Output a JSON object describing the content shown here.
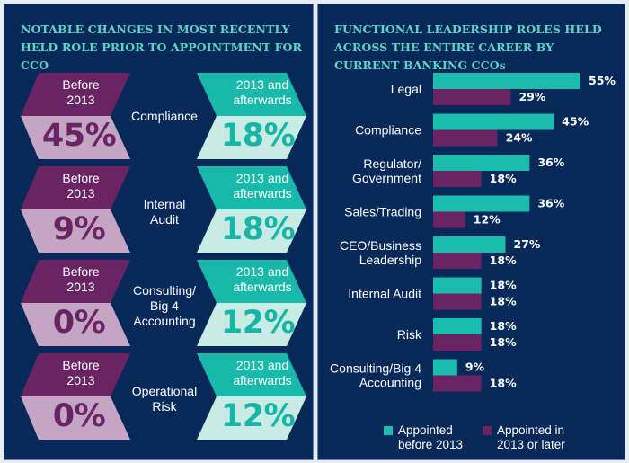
{
  "colors": {
    "background": "#06295a",
    "title": "#5fd4c6",
    "before_dark": "#6a2463",
    "before_light": "#c4a5c4",
    "after_dark": "#18b8aa",
    "after_light": "#c9ebe5",
    "bar_before": "#1bbcae",
    "bar_after": "#6a2463"
  },
  "left_panel": {
    "title": "NOTABLE CHANGES IN MOST RECENTLY HELD ROLE PRIOR TO APPOINTMENT FOR CCO",
    "rows": [
      {
        "role": "Compliance",
        "before_label": "Before 2013",
        "before_value": "45%",
        "after_label": "2013 and afterwards",
        "after_value": "18%"
      },
      {
        "role": "Internal Audit",
        "before_label": "Before 2013",
        "before_value": "9%",
        "after_label": "2013 and afterwards",
        "after_value": "18%"
      },
      {
        "role": "Consulting/ Big 4 Accounting",
        "before_label": "Before 2013",
        "before_value": "0%",
        "after_label": "2013 and afterwards",
        "after_value": "12%"
      },
      {
        "role": "Operational Risk",
        "before_label": "Before 2013",
        "before_value": "0%",
        "after_label": "2013 and afterwards",
        "after_value": "12%"
      }
    ]
  },
  "chart_data": {
    "type": "bar",
    "orientation": "horizontal",
    "title": "FUNCTIONAL LEADERSHIP ROLES HELD ACROSS THE ENTIRE CAREER BY CURRENT BANKING CCOs",
    "categories": [
      "Legal",
      "Compliance",
      "Regulator/ Government",
      "Sales/Trading",
      "CEO/Business Leadership",
      "Internal Audit",
      "Risk",
      "Consulting/Big 4 Accounting"
    ],
    "series": [
      {
        "name": "Appointed before 2013",
        "values": [
          55,
          45,
          36,
          36,
          27,
          18,
          18,
          9
        ]
      },
      {
        "name": "Appointed in 2013 or later",
        "values": [
          29,
          24,
          18,
          12,
          18,
          18,
          18,
          18
        ]
      }
    ],
    "value_suffix": "%",
    "xlim": [
      0,
      60
    ],
    "grid": false,
    "legend": "bottom"
  },
  "legend": [
    {
      "label_line1": "Appointed",
      "label_line2": "before 2013"
    },
    {
      "label_line1": "Appointed in",
      "label_line2": "2013 or later"
    }
  ]
}
